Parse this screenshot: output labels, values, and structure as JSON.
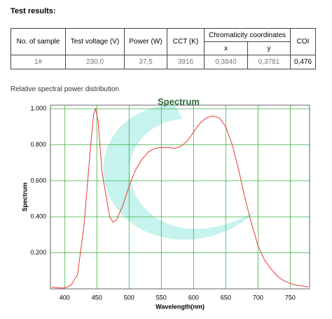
{
  "title": "Test results:",
  "table": {
    "header": [
      "No. of sample",
      "Test voltage (V)",
      "Power (W)",
      "CCT (K)",
      "Chromaticity coordinates",
      "COI"
    ],
    "subheader": [
      "x",
      "y"
    ],
    "rows": [
      [
        "1#",
        "230,0",
        "37,5",
        "3916",
        "0,3840",
        "0,3781",
        "0,476"
      ]
    ]
  },
  "section_label": "Relative spectral power distribution",
  "chart_data": {
    "type": "line",
    "title": "Spectrum",
    "x_label": "Wavelength(nm)",
    "y_label": "Spectrum",
    "x": [
      380,
      390,
      400,
      410,
      420,
      430,
      440,
      445,
      448,
      452,
      458,
      465,
      470,
      475,
      480,
      490,
      500,
      510,
      520,
      530,
      540,
      550,
      560,
      570,
      580,
      590,
      600,
      610,
      620,
      630,
      640,
      650,
      660,
      670,
      680,
      690,
      700,
      710,
      720,
      730,
      740,
      750,
      760,
      770,
      778
    ],
    "values": [
      0.01,
      0.005,
      0.005,
      0.02,
      0.08,
      0.35,
      0.78,
      0.97,
      1.0,
      0.93,
      0.65,
      0.5,
      0.4,
      0.37,
      0.38,
      0.46,
      0.57,
      0.66,
      0.72,
      0.76,
      0.78,
      0.785,
      0.785,
      0.78,
      0.79,
      0.82,
      0.87,
      0.92,
      0.95,
      0.96,
      0.95,
      0.9,
      0.8,
      0.66,
      0.5,
      0.36,
      0.24,
      0.16,
      0.11,
      0.07,
      0.045,
      0.03,
      0.02,
      0.015,
      0.01
    ],
    "color": "#e8392f",
    "xlim": [
      378,
      780
    ],
    "ylim": [
      0,
      1.02
    ],
    "xticks": [
      400,
      450,
      500,
      550,
      600,
      650,
      700,
      750
    ],
    "yticks": [
      {
        "value": 0.2,
        "label": "0.200"
      },
      {
        "value": 0.4,
        "label": "0.400"
      },
      {
        "value": 0.6,
        "label": "0.600"
      },
      {
        "value": 0.8,
        "label": "0.800"
      },
      {
        "value": 1.0,
        "label": "1.000"
      }
    ],
    "grid": true,
    "grid_color": "#3cb043"
  }
}
